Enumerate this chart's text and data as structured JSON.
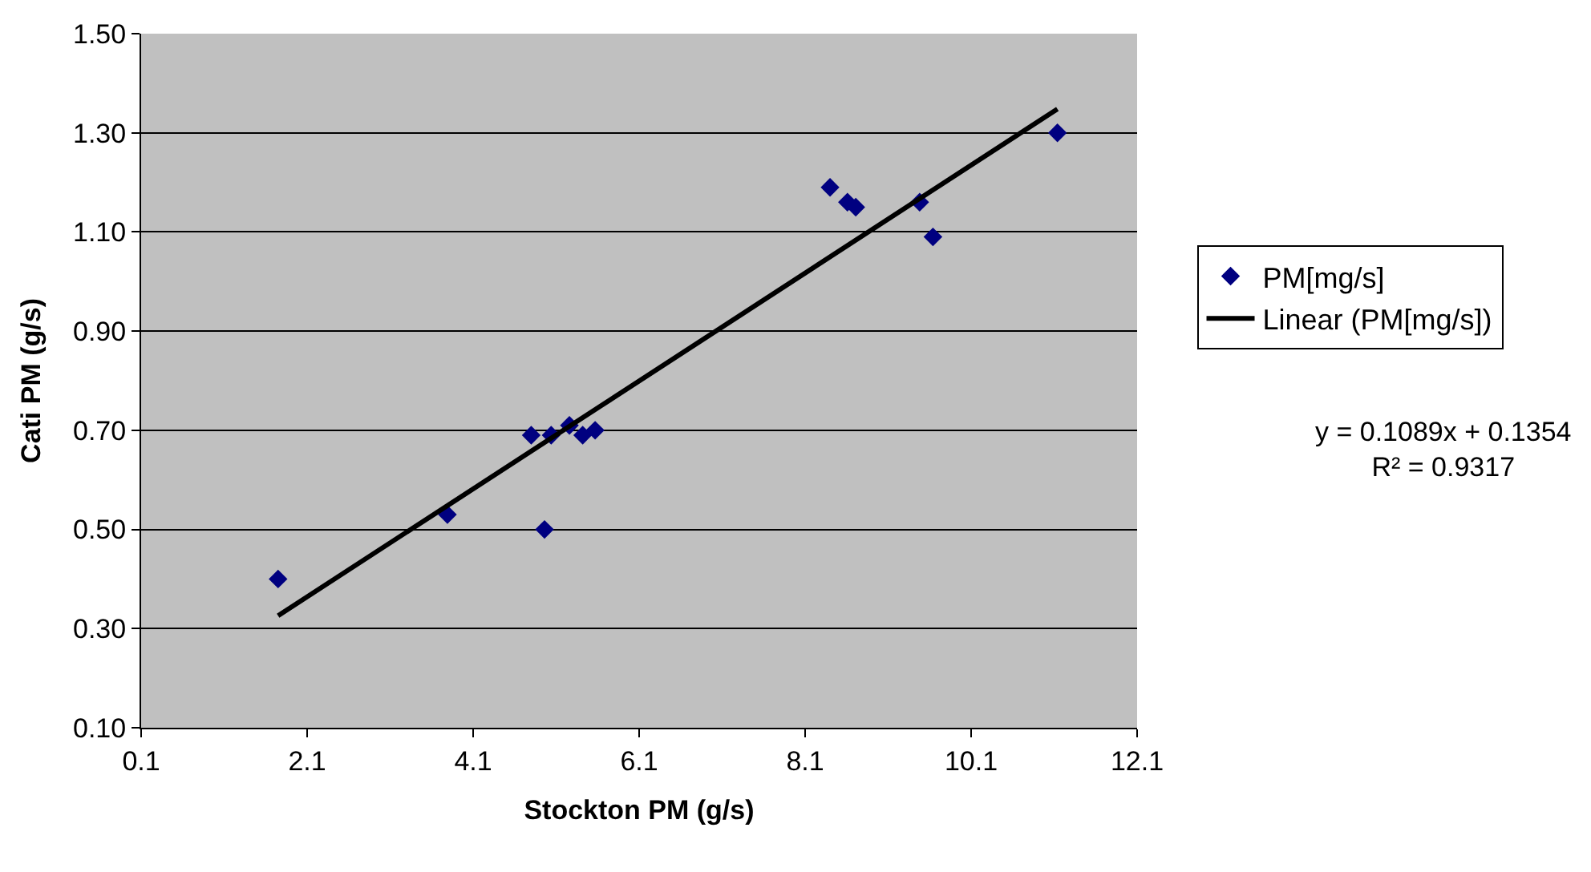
{
  "chart_data": {
    "type": "scatter",
    "xlabel": "Stockton PM (g/s)",
    "ylabel": "Cati PM (g/s)",
    "xlim": [
      0.1,
      12.1
    ],
    "xticks": [
      0.1,
      2.1,
      4.1,
      6.1,
      8.1,
      10.1,
      12.1
    ],
    "ylim": [
      0.1,
      1.5
    ],
    "yticks": [
      {
        "value": 0.1,
        "label": "0.10"
      },
      {
        "value": 0.3,
        "label": "0.30"
      },
      {
        "value": 0.5,
        "label": "0.50"
      },
      {
        "value": 0.7,
        "label": "0.70"
      },
      {
        "value": 0.9,
        "label": "0.90"
      },
      {
        "value": 1.1,
        "label": "1.10"
      },
      {
        "value": 1.3,
        "label": "1.30"
      },
      {
        "value": 1.5,
        "label": "1.50"
      }
    ],
    "grid": "y",
    "legend": "right",
    "series": [
      {
        "name": "PM[mg/s]",
        "marker": "diamond",
        "color": "#000080",
        "x": [
          1.75,
          3.79,
          4.8,
          4.96,
          5.04,
          5.26,
          5.42,
          5.57,
          8.4,
          8.61,
          8.71,
          9.48,
          9.64,
          11.14
        ],
        "values": [
          0.4,
          0.53,
          0.69,
          0.5,
          0.69,
          0.71,
          0.69,
          0.7,
          1.19,
          1.16,
          1.15,
          1.16,
          1.09,
          1.3
        ]
      },
      {
        "name": "Linear (PM[mg/s])",
        "type": "line",
        "marker": "none",
        "line_style": "solid",
        "color": "#000000",
        "x": [
          1.75,
          11.14
        ],
        "values": [
          0.326,
          1.348
        ]
      }
    ],
    "annotations": [
      "y = 0.1089x + 0.1354\nR² = 0.9317"
    ]
  }
}
